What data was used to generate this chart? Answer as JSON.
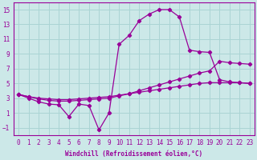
{
  "xlabel": "Windchill (Refroidissement éolien,°C)",
  "bg_color": "#cce8e8",
  "grid_color": "#aad4d4",
  "line_color": "#990099",
  "xlim": [
    -0.5,
    23.5
  ],
  "ylim": [
    -2.0,
    16.0
  ],
  "xticks": [
    0,
    1,
    2,
    3,
    4,
    5,
    6,
    7,
    8,
    9,
    10,
    11,
    12,
    13,
    14,
    15,
    16,
    17,
    18,
    19,
    20,
    21,
    22,
    23
  ],
  "yticks": [
    -1,
    1,
    3,
    5,
    7,
    9,
    11,
    13,
    15
  ],
  "series_top_x": [
    0,
    1,
    2,
    3,
    4,
    5,
    6,
    7,
    8,
    9,
    10,
    11,
    12,
    13,
    14,
    15,
    16,
    17,
    18,
    19,
    20,
    21,
    22,
    23
  ],
  "series_top_y": [
    3.5,
    3.2,
    3.0,
    2.9,
    2.8,
    2.8,
    2.9,
    3.0,
    3.1,
    3.2,
    3.4,
    3.6,
    3.8,
    4.0,
    4.2,
    4.4,
    4.6,
    4.8,
    5.0,
    5.1,
    5.1,
    5.1,
    5.1,
    5.0
  ],
  "series_mid_x": [
    0,
    1,
    2,
    3,
    4,
    5,
    6,
    7,
    8,
    9,
    10,
    11,
    12,
    13,
    14,
    15,
    16,
    17,
    18,
    19,
    20,
    21,
    22,
    23
  ],
  "series_mid_y": [
    3.5,
    3.2,
    2.9,
    2.7,
    2.6,
    2.6,
    2.7,
    2.8,
    2.9,
    3.0,
    3.3,
    3.6,
    4.0,
    4.4,
    4.8,
    5.2,
    5.6,
    6.0,
    6.4,
    6.7,
    8.0,
    7.8,
    7.7,
    7.6
  ],
  "series_bot_x": [
    0,
    1,
    2,
    3,
    4,
    5,
    6,
    7,
    8,
    9,
    10,
    11,
    12,
    13,
    14,
    15,
    16,
    17,
    18,
    19,
    20,
    21,
    22,
    23
  ],
  "series_bot_y": [
    3.5,
    3.0,
    2.5,
    2.2,
    2.1,
    0.5,
    2.2,
    2.0,
    -1.3,
    1.0,
    10.3,
    11.5,
    13.5,
    14.4,
    15.0,
    15.0,
    14.0,
    9.5,
    9.3,
    9.2,
    5.5,
    5.2,
    5.1,
    5.0
  ]
}
